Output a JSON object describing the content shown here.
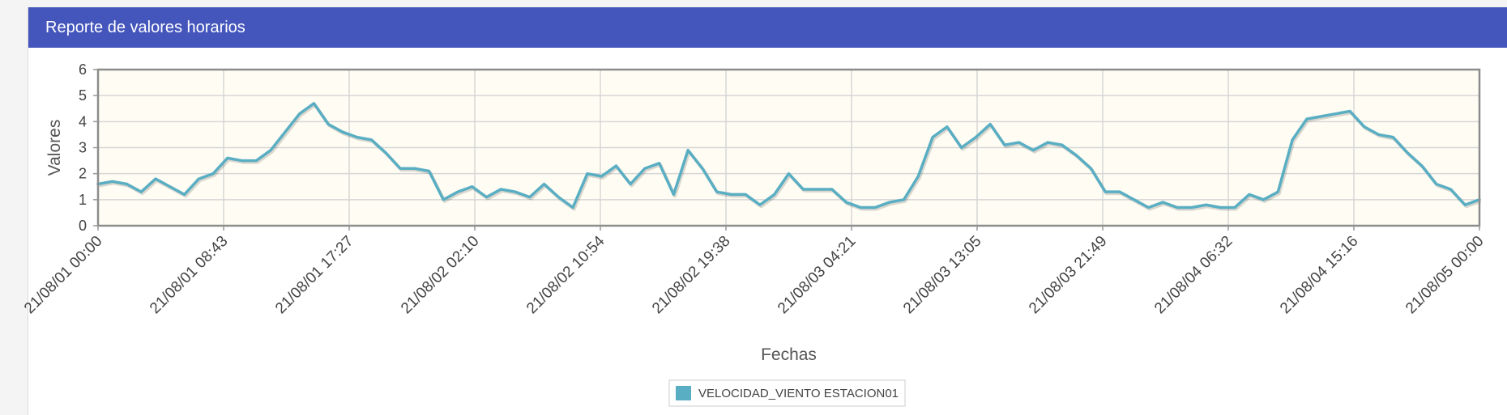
{
  "panel": {
    "title": "Reporte de valores horarios"
  },
  "colors": {
    "header_bg": "#4455bb",
    "plot_bg": "#fffdf3",
    "series": "#5aaec3",
    "grid": "#d6d6d6"
  },
  "chart_data": {
    "type": "line",
    "xlabel": "Fechas",
    "ylabel": "Valores",
    "ylim": [
      0,
      6
    ],
    "yticks": [
      "0",
      "1",
      "2",
      "3",
      "4",
      "5",
      "6"
    ],
    "xticks": [
      "21/08/01 00:00",
      "21/08/01 08:43",
      "21/08/01 17:27",
      "21/08/02 02:10",
      "21/08/02 10:54",
      "21/08/02 19:38",
      "21/08/03 04:21",
      "21/08/03 13:05",
      "21/08/03 21:49",
      "21/08/04 06:32",
      "21/08/04 15:16",
      "21/08/05 00:00"
    ],
    "x_unit": "1 point per hour, 21/08/01 00:00 to 21/08/05 00:00",
    "grid": true,
    "legend": "bottom-center",
    "series": [
      {
        "name": "VELOCIDAD_VIENTO ESTACION01",
        "values": [
          1.6,
          1.7,
          1.6,
          1.3,
          1.8,
          1.5,
          1.2,
          1.8,
          2.0,
          2.6,
          2.5,
          2.5,
          2.9,
          3.6,
          4.3,
          4.7,
          3.9,
          3.6,
          3.4,
          3.3,
          2.8,
          2.2,
          2.2,
          2.1,
          1.0,
          1.3,
          1.5,
          1.1,
          1.4,
          1.3,
          1.1,
          1.6,
          1.1,
          0.7,
          2.0,
          1.9,
          2.3,
          1.6,
          2.2,
          2.4,
          1.2,
          2.9,
          2.2,
          1.3,
          1.2,
          1.2,
          0.8,
          1.2,
          2.0,
          1.4,
          1.4,
          1.4,
          0.9,
          0.7,
          0.7,
          0.9,
          1.0,
          1.9,
          3.4,
          3.8,
          3.0,
          3.4,
          3.9,
          3.1,
          3.2,
          2.9,
          3.2,
          3.1,
          2.7,
          2.2,
          1.3,
          1.3,
          1.0,
          0.7,
          0.9,
          0.7,
          0.7,
          0.8,
          0.7,
          0.7,
          1.2,
          1.0,
          1.3,
          3.3,
          4.1,
          4.2,
          4.3,
          4.4,
          3.8,
          3.5,
          3.4,
          2.8,
          2.3,
          1.6,
          1.4,
          0.8,
          1.0
        ]
      }
    ]
  }
}
